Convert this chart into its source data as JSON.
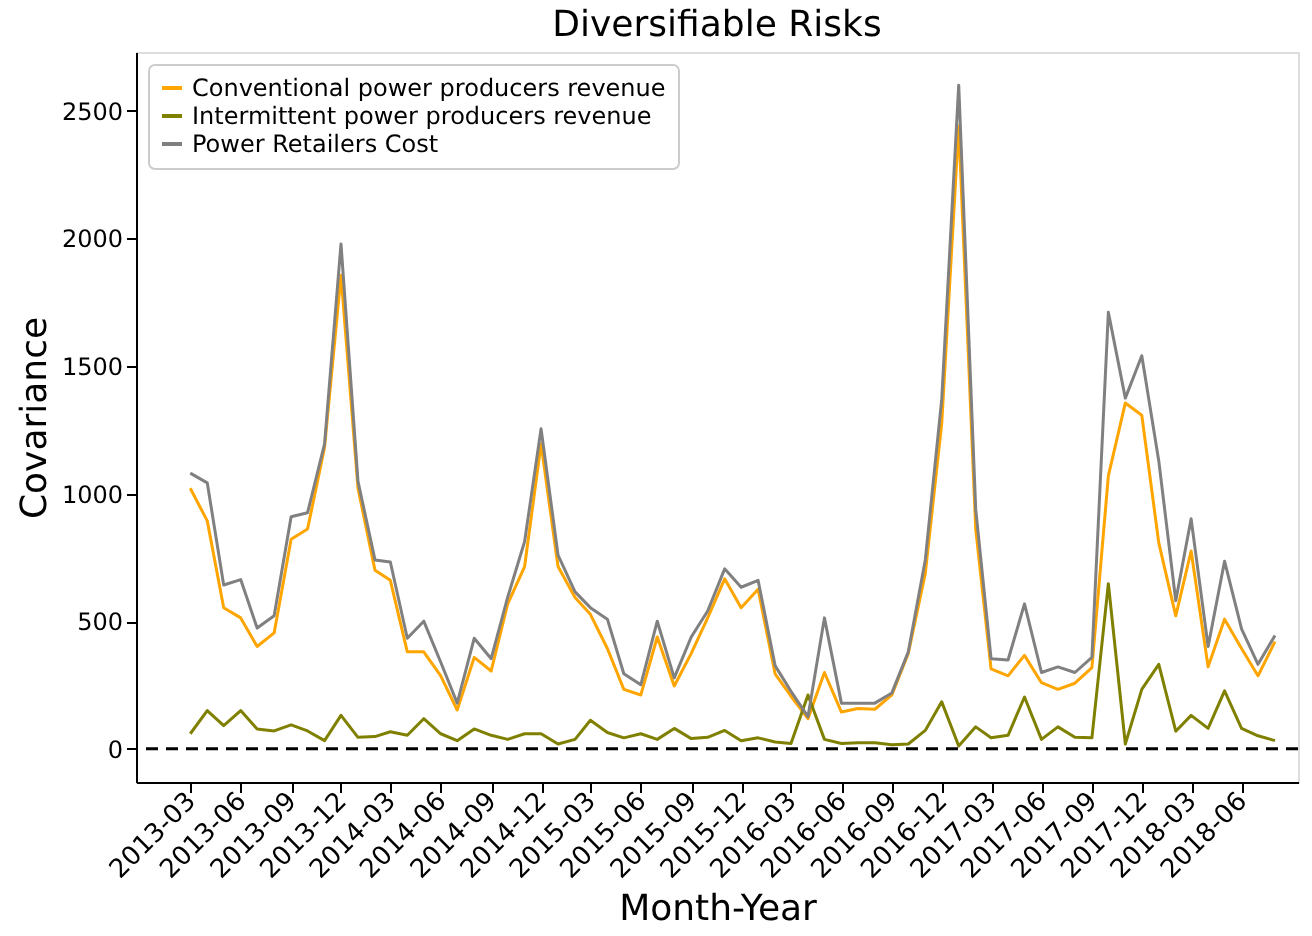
{
  "chart_data": {
    "type": "line",
    "title": "Diversifiable Risks",
    "xlabel": "Month-Year",
    "ylabel": "Covariance",
    "x": [
      "2013-03",
      "2013-04",
      "2013-05",
      "2013-06",
      "2013-07",
      "2013-08",
      "2013-09",
      "2013-10",
      "2013-11",
      "2013-12",
      "2014-01",
      "2014-02",
      "2014-03",
      "2014-04",
      "2014-05",
      "2014-06",
      "2014-07",
      "2014-08",
      "2014-09",
      "2014-10",
      "2014-11",
      "2014-12",
      "2015-01",
      "2015-02",
      "2015-03",
      "2015-04",
      "2015-05",
      "2015-06",
      "2015-07",
      "2015-08",
      "2015-09",
      "2015-10",
      "2015-11",
      "2015-12",
      "2016-01",
      "2016-02",
      "2016-03",
      "2016-04",
      "2016-05",
      "2016-06",
      "2016-07",
      "2016-08",
      "2016-09",
      "2016-10",
      "2016-11",
      "2016-12",
      "2017-01",
      "2017-02",
      "2017-03",
      "2017-04",
      "2017-05",
      "2017-06",
      "2017-07",
      "2017-08",
      "2017-09",
      "2017-10",
      "2017-11",
      "2017-12",
      "2018-01",
      "2018-02",
      "2018-03",
      "2018-04",
      "2018-05",
      "2018-06",
      "2018-07",
      "2018-08"
    ],
    "series": [
      {
        "name": "Conventional power producers revenue",
        "color": "#ffa500",
        "values": [
          1021,
          893,
          553,
          513,
          401,
          454,
          821,
          861,
          1181,
          1855,
          1021,
          700,
          660,
          380,
          380,
          286,
          152,
          358,
          305,
          567,
          714,
          1195,
          714,
          593,
          527,
          393,
          233,
          211,
          438,
          246,
          374,
          513,
          666,
          553,
          625,
          294,
          206,
          118,
          299,
          144,
          158,
          155,
          211,
          374,
          687,
          1275,
          2440,
          861,
          313,
          286,
          366,
          259,
          233,
          257,
          318,
          1069,
          1355,
          1307,
          807,
          521,
          775,
          321,
          508,
          393,
          286,
          420
        ]
      },
      {
        "name": "Intermittent power producers revenue",
        "color": "#808000",
        "values": [
          59,
          150,
          91,
          150,
          78,
          70,
          94,
          70,
          32,
          131,
          45,
          48,
          67,
          53,
          118,
          59,
          32,
          78,
          53,
          37,
          59,
          59,
          19,
          37,
          112,
          64,
          43,
          59,
          37,
          80,
          40,
          45,
          72,
          32,
          43,
          27,
          21,
          211,
          37,
          21,
          24,
          24,
          16,
          19,
          72,
          184,
          11,
          86,
          43,
          53,
          203,
          37,
          86,
          45,
          43,
          647,
          19,
          233,
          331,
          69,
          131,
          80,
          227,
          80,
          51,
          32
        ]
      },
      {
        "name": "Power Retailers Cost",
        "color": "#808080",
        "values": [
          1080,
          1042,
          642,
          663,
          473,
          521,
          909,
          925,
          1195,
          1978,
          1048,
          740,
          732,
          433,
          500,
          339,
          179,
          433,
          353,
          593,
          812,
          1254,
          759,
          615,
          553,
          508,
          294,
          251,
          500,
          278,
          438,
          540,
          705,
          633,
          660,
          326,
          225,
          126,
          513,
          179,
          179,
          179,
          219,
          380,
          740,
          1369,
          2600,
          939,
          353,
          348,
          568,
          299,
          321,
          299,
          358,
          1710,
          1374,
          1540,
          1128,
          580,
          901,
          401,
          735,
          470,
          331,
          444
        ]
      }
    ],
    "xlim": [
      "2012-11-22",
      "2018-09-12"
    ],
    "xticks": [
      "2013-03",
      "2013-06",
      "2013-09",
      "2013-12",
      "2014-03",
      "2014-06",
      "2014-09",
      "2014-12",
      "2015-03",
      "2015-06",
      "2015-09",
      "2015-12",
      "2016-03",
      "2016-06",
      "2016-09",
      "2016-12",
      "2017-03",
      "2017-06",
      "2017-09",
      "2017-12",
      "2018-03",
      "2018-06"
    ],
    "ylim": [
      -130,
      2730
    ],
    "yticks": [
      0,
      500,
      1000,
      1500,
      2000,
      2500
    ],
    "ref_lines": [
      {
        "axis": "y",
        "value": 0,
        "color": "#000000",
        "line_style": "dashed"
      }
    ],
    "legend": "top left",
    "grid": false,
    "marker": "none",
    "line_style": "solid"
  }
}
